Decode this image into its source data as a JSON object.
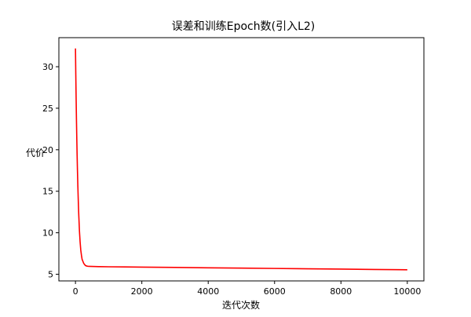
{
  "chart_data": {
    "type": "line",
    "title": "误差和训练Epoch数(引入L2)",
    "xlabel": "迭代次数",
    "ylabel": "代价",
    "xlim": [
      -500,
      10500
    ],
    "ylim": [
      4.2,
      33.5
    ],
    "xticks": [
      0,
      2000,
      4000,
      6000,
      8000,
      10000
    ],
    "yticks": [
      5,
      10,
      15,
      20,
      25,
      30
    ],
    "grid": false,
    "legend": "none",
    "series": [
      {
        "color": "#ff0000",
        "x": [
          0,
          10,
          20,
          30,
          40,
          50,
          60,
          70,
          80,
          90,
          100,
          120,
          140,
          160,
          180,
          200,
          250,
          300,
          350,
          400,
          500,
          700,
          1000,
          1500,
          2000,
          3000,
          4000,
          5000,
          6000,
          7000,
          8000,
          9000,
          10000
        ],
        "y": [
          32.2,
          29.0,
          26.2,
          23.6,
          21.3,
          19.3,
          17.5,
          15.9,
          14.5,
          13.2,
          12.1,
          10.2,
          8.9,
          7.9,
          7.3,
          6.8,
          6.3,
          6.05,
          5.98,
          5.95,
          5.94,
          5.92,
          5.9,
          5.88,
          5.86,
          5.82,
          5.78,
          5.74,
          5.7,
          5.66,
          5.62,
          5.58,
          5.54
        ]
      }
    ]
  }
}
